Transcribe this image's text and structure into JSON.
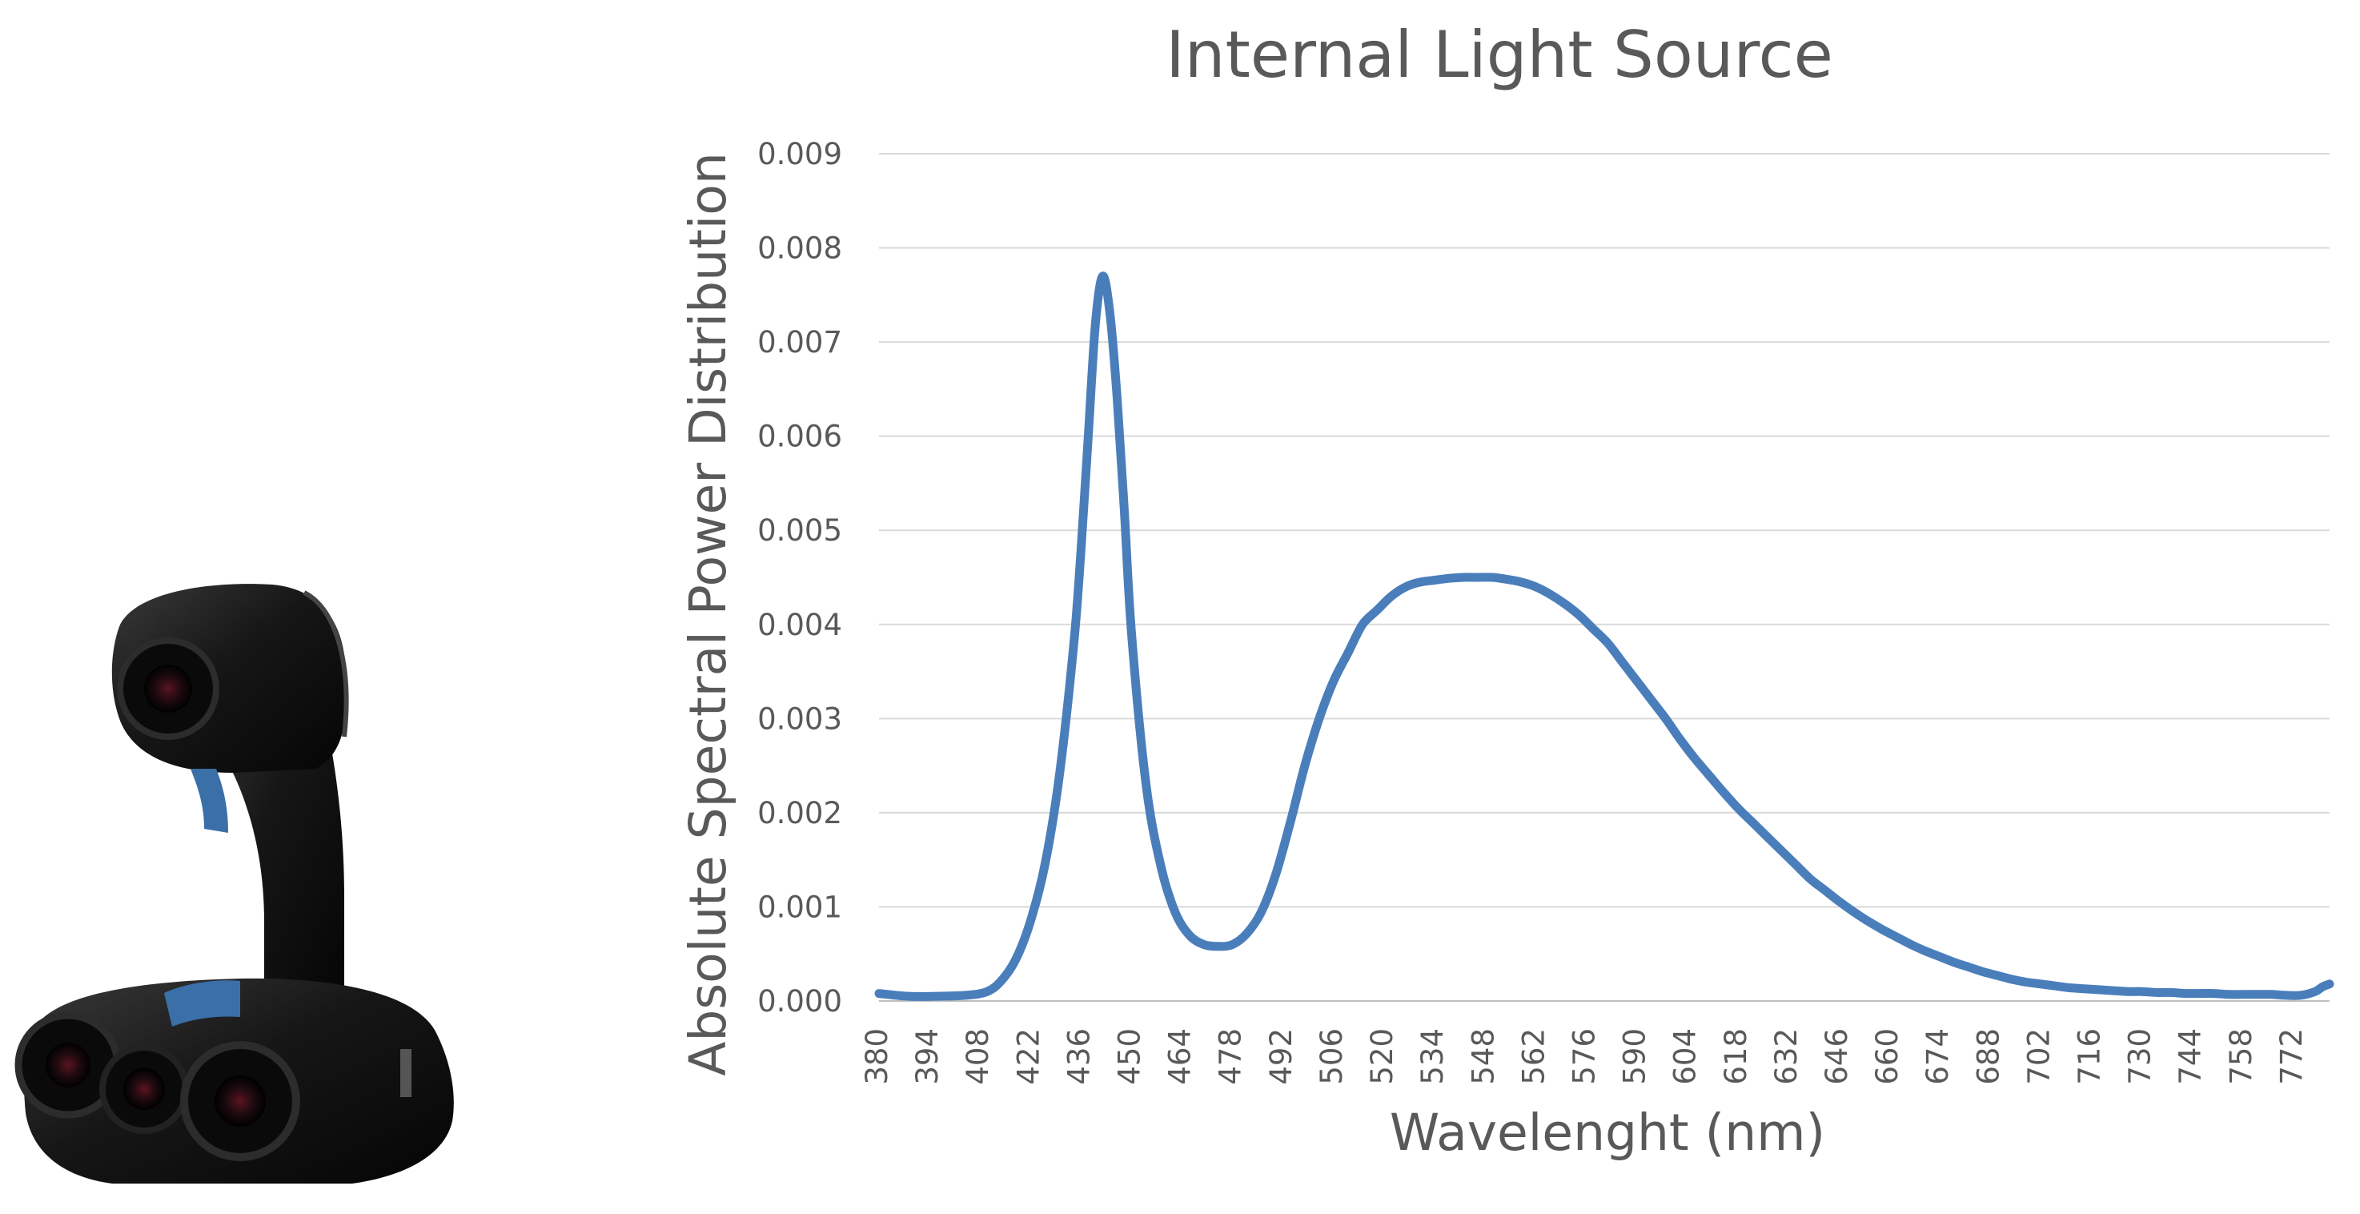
{
  "product_image": {
    "label": "3D handheld scanner with internal light source",
    "colors": {
      "body": "#141414",
      "accent": "#3a6fa8"
    }
  },
  "chart_data": {
    "type": "line",
    "title": "Internal Light Source",
    "xlabel": "Wavelenght (nm)",
    "ylabel": "Absolute Spectral Power Distribution",
    "xlim": [
      380,
      782
    ],
    "ylim": [
      0,
      0.009
    ],
    "grid": true,
    "x_tick_labels": [
      "380",
      "394",
      "408",
      "422",
      "436",
      "450",
      "464",
      "478",
      "492",
      "506",
      "520",
      "534",
      "548",
      "562",
      "576",
      "590",
      "604",
      "618",
      "632",
      "646",
      "660",
      "674",
      "688",
      "702",
      "716",
      "730",
      "744",
      "758",
      "772"
    ],
    "y_tick_labels": [
      "0.000",
      "0.001",
      "0.002",
      "0.003",
      "0.004",
      "0.005",
      "0.006",
      "0.007",
      "0.008",
      "0.009"
    ],
    "series": [
      {
        "name": "Internal Light Source",
        "color": "#4a7ebb",
        "x": [
          380,
          388,
          396,
          404,
          410,
          414,
          418,
          422,
          426,
          430,
          434,
          436,
          438,
          440,
          442,
          444,
          446,
          448,
          450,
          454,
          458,
          462,
          466,
          470,
          474,
          478,
          482,
          486,
          490,
          494,
          498,
          502,
          506,
          510,
          514,
          518,
          522,
          526,
          530,
          534,
          538,
          542,
          546,
          550,
          554,
          558,
          562,
          566,
          570,
          574,
          578,
          582,
          586,
          590,
          594,
          598,
          602,
          606,
          610,
          614,
          618,
          622,
          626,
          630,
          634,
          638,
          642,
          646,
          650,
          654,
          658,
          662,
          666,
          670,
          674,
          678,
          682,
          686,
          690,
          694,
          698,
          702,
          706,
          710,
          714,
          718,
          722,
          726,
          730,
          734,
          738,
          742,
          746,
          750,
          754,
          758,
          762,
          766,
          770,
          774,
          778,
          780,
          782
        ],
        "values": [
          8e-05,
          5e-05,
          5e-05,
          6e-05,
          0.0001,
          0.00022,
          0.00045,
          0.00085,
          0.00145,
          0.0024,
          0.0038,
          0.0048,
          0.006,
          0.0072,
          0.0077,
          0.0073,
          0.0064,
          0.0052,
          0.0039,
          0.0023,
          0.00145,
          0.00095,
          0.0007,
          0.0006,
          0.00058,
          0.0006,
          0.00072,
          0.00095,
          0.00135,
          0.0019,
          0.0025,
          0.003,
          0.0034,
          0.0037,
          0.004,
          0.00415,
          0.0043,
          0.0044,
          0.00445,
          0.00447,
          0.00449,
          0.0045,
          0.0045,
          0.0045,
          0.00448,
          0.00445,
          0.0044,
          0.00432,
          0.00422,
          0.0041,
          0.00395,
          0.0038,
          0.0036,
          0.0034,
          0.0032,
          0.003,
          0.00278,
          0.00258,
          0.0024,
          0.00222,
          0.00205,
          0.0019,
          0.00175,
          0.0016,
          0.00145,
          0.0013,
          0.00118,
          0.00106,
          0.00095,
          0.00085,
          0.00076,
          0.00068,
          0.0006,
          0.00053,
          0.00047,
          0.00041,
          0.00036,
          0.00031,
          0.00027,
          0.00023,
          0.0002,
          0.00018,
          0.00016,
          0.00014,
          0.00013,
          0.00012,
          0.00011,
          0.0001,
          0.0001,
          9e-05,
          9e-05,
          8e-05,
          8e-05,
          8e-05,
          7e-05,
          7e-05,
          7e-05,
          7e-05,
          6e-05,
          6e-05,
          0.0001,
          0.00015,
          0.00018
        ]
      }
    ]
  }
}
